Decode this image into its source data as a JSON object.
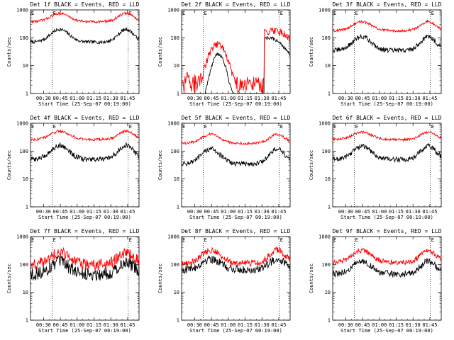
{
  "chart_data": [
    {
      "type": "line",
      "title": "Det 1f BLACK = Events, RED = LLD",
      "xlabel": "Start Time (25-Sep-07 00:19:00)",
      "ylabel": "Counts/sec",
      "log_y": true,
      "ylim": [
        1,
        1000
      ],
      "xlim": [
        0,
        100
      ],
      "xtick_labels": [
        "00:30",
        "00:45",
        "01:00",
        "01:15",
        "01:30",
        "01:45"
      ],
      "ytick_labels": [
        "1",
        "10",
        "100",
        "1000"
      ],
      "marker": "E",
      "vlines": [
        0.2,
        0.9
      ],
      "series": [
        {
          "color": "#000000",
          "baseline": 70,
          "peak": 200,
          "noise": 0.02
        },
        {
          "color": "#ff0000",
          "baseline": 380,
          "peak": 750,
          "noise": 0.015
        }
      ]
    },
    {
      "type": "line",
      "title": "Det 2f BLACK = Events, RED = LLD",
      "xlabel": "Start Time (25-Sep-07 00:19:00)",
      "ylabel": "Counts/sec",
      "log_y": true,
      "ylim": [
        1,
        1000
      ],
      "xlim": [
        0,
        100
      ],
      "xtick_labels": [
        "00:30",
        "00:45",
        "01:00",
        "01:15",
        "01:30",
        "01:45"
      ],
      "ytick_labels": [
        "1",
        "10",
        "100",
        "1000"
      ],
      "marker": "E",
      "vlines": [
        0.2,
        0.9
      ],
      "series": [
        {
          "color": "#000000",
          "special": "det2_black"
        },
        {
          "color": "#ff0000",
          "special": "det2_red"
        }
      ]
    },
    {
      "type": "line",
      "title": "Det 3f BLACK = Events, RED = LLD",
      "xlabel": "Start Time (25-Sep-07 00:19:00)",
      "ylabel": "Counts/sec",
      "log_y": true,
      "ylim": [
        1,
        1000
      ],
      "xlim": [
        0,
        100
      ],
      "xtick_labels": [
        "00:30",
        "00:45",
        "01:00",
        "01:15",
        "01:30",
        "01:45"
      ],
      "ytick_labels": [
        "1",
        "10",
        "100",
        "1000"
      ],
      "marker": "E",
      "vlines": [
        0.2,
        0.9
      ],
      "series": [
        {
          "color": "#000000",
          "baseline": 35,
          "peak": 110,
          "noise": 0.03
        },
        {
          "color": "#ff0000",
          "baseline": 180,
          "peak": 380,
          "noise": 0.015
        }
      ]
    },
    {
      "type": "line",
      "title": "Det 4f BLACK = Events, RED = LLD",
      "xlabel": "Start Time (25-Sep-07 00:19:00)",
      "ylabel": "Counts/sec",
      "log_y": true,
      "ylim": [
        1,
        1000
      ],
      "xlim": [
        0,
        100
      ],
      "xtick_labels": [
        "00:30",
        "00:45",
        "01:00",
        "01:15",
        "01:30",
        "01:45"
      ],
      "ytick_labels": [
        "1",
        "10",
        "100",
        "1000"
      ],
      "marker": "E",
      "vlines": [
        0.2,
        0.9
      ],
      "series": [
        {
          "color": "#000000",
          "baseline": 50,
          "peak": 160,
          "noise": 0.03
        },
        {
          "color": "#ff0000",
          "baseline": 260,
          "peak": 520,
          "noise": 0.015
        }
      ]
    },
    {
      "type": "line",
      "title": "Det 5f BLACK = Events, RED = LLD",
      "xlabel": "Start Time (25-Sep-07 00:19:00)",
      "ylabel": "Counts/sec",
      "log_y": true,
      "ylim": [
        1,
        1000
      ],
      "xlim": [
        0,
        100
      ],
      "xtick_labels": [
        "00:30",
        "00:45",
        "01:00",
        "01:15",
        "01:30",
        "01:45"
      ],
      "ytick_labels": [
        "1",
        "10",
        "100",
        "1000"
      ],
      "marker": "E",
      "vlines": [
        0.2,
        0.9
      ],
      "series": [
        {
          "color": "#000000",
          "baseline": 35,
          "peak": 120,
          "noise": 0.03
        },
        {
          "color": "#ff0000",
          "baseline": 190,
          "peak": 400,
          "noise": 0.015
        }
      ]
    },
    {
      "type": "line",
      "title": "Det 6f BLACK = Events, RED = LLD",
      "xlabel": "Start Time (25-Sep-07 00:19:00)",
      "ylabel": "Counts/sec",
      "log_y": true,
      "ylim": [
        1,
        1000
      ],
      "xlim": [
        0,
        100
      ],
      "xtick_labels": [
        "00:30",
        "00:45",
        "01:00",
        "01:15",
        "01:30",
        "01:45"
      ],
      "ytick_labels": [
        "1",
        "10",
        "100",
        "1000"
      ],
      "marker": "E",
      "vlines": [
        0.2,
        0.9
      ],
      "series": [
        {
          "color": "#000000",
          "baseline": 50,
          "peak": 150,
          "noise": 0.03
        },
        {
          "color": "#ff0000",
          "baseline": 260,
          "peak": 480,
          "noise": 0.015
        }
      ]
    },
    {
      "type": "line",
      "title": "Det 7f BLACK = Events, RED = LLD",
      "xlabel": "Start Time (25-Sep-07 00:19:00)",
      "ylabel": "Counts/sec",
      "log_y": true,
      "ylim": [
        1,
        1000
      ],
      "xlim": [
        0,
        100
      ],
      "xtick_labels": [
        "00:30",
        "00:45",
        "01:00",
        "01:15",
        "01:30",
        "01:45"
      ],
      "ytick_labels": [
        "1",
        "10",
        "100",
        "1000"
      ],
      "marker": "E",
      "vlines": [
        0.2,
        0.9
      ],
      "series": [
        {
          "color": "#000000",
          "baseline": 45,
          "peak": 120,
          "noise": 0.08
        },
        {
          "color": "#ff0000",
          "baseline": 100,
          "peak": 260,
          "noise": 0.07
        }
      ]
    },
    {
      "type": "line",
      "title": "Det 8f BLACK = Events, RED = LLD",
      "xlabel": "Start Time (25-Sep-07 00:19:00)",
      "ylabel": "Counts/sec",
      "log_y": true,
      "ylim": [
        1,
        1000
      ],
      "xlim": [
        0,
        100
      ],
      "xtick_labels": [
        "00:30",
        "00:45",
        "01:00",
        "01:15",
        "01:30",
        "01:45"
      ],
      "ytick_labels": [
        "1",
        "10",
        "100",
        "1000"
      ],
      "marker": "E",
      "vlines": [
        0.2,
        0.9
      ],
      "series": [
        {
          "color": "#000000",
          "baseline": 65,
          "peak": 160,
          "noise": 0.05
        },
        {
          "color": "#ff0000",
          "baseline": 110,
          "peak": 330,
          "noise": 0.04
        }
      ]
    },
    {
      "type": "line",
      "title": "Det 9f BLACK = Events, RED = LLD",
      "xlabel": "Start Time (25-Sep-07 00:19:00)",
      "ylabel": "Counts/sec",
      "log_y": true,
      "ylim": [
        1,
        1000
      ],
      "xlim": [
        0,
        100
      ],
      "xtick_labels": [
        "00:30",
        "00:45",
        "01:00",
        "01:15",
        "01:30",
        "01:45"
      ],
      "ytick_labels": [
        "1",
        "10",
        "100",
        "1000"
      ],
      "marker": "E",
      "vlines": [
        0.2,
        0.9
      ],
      "series": [
        {
          "color": "#000000",
          "baseline": 45,
          "peak": 130,
          "noise": 0.04
        },
        {
          "color": "#ff0000",
          "baseline": 120,
          "peak": 320,
          "noise": 0.03
        }
      ]
    }
  ]
}
